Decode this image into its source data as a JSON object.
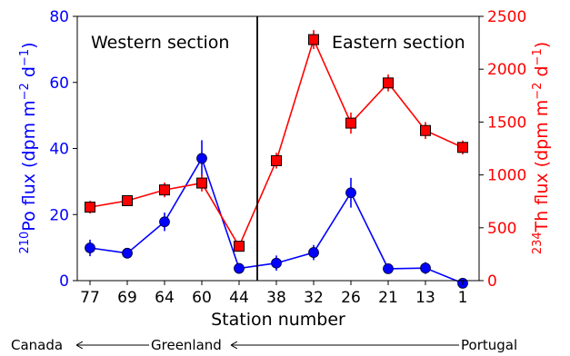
{
  "chart_data": {
    "type": "line",
    "xlabel": "Station number",
    "categories": [
      "77",
      "69",
      "64",
      "60",
      "44",
      "38",
      "32",
      "26",
      "21",
      "13",
      "1"
    ],
    "left_axis": {
      "label_sup": "210",
      "label_main": "Po flux (dpm m",
      "label_sup2": "−2",
      "label_end": " d",
      "label_sup3": "−1",
      "label_close": ")",
      "ylim": [
        0,
        80
      ],
      "ticks": [
        "0",
        "20",
        "40",
        "60",
        "80"
      ],
      "color": "#0000ff"
    },
    "right_axis": {
      "label_sup": "234",
      "label_main": "Th flux (dpm m",
      "label_sup2": "−2",
      "label_end": " d",
      "label_sup3": "−1",
      "label_close": ")",
      "ylim": [
        0,
        2500
      ],
      "ticks": [
        "0",
        "500",
        "1000",
        "1500",
        "2000",
        "2500"
      ],
      "color": "#ff0000"
    },
    "series": [
      {
        "axis": "left",
        "color": "#0000ff",
        "marker": "circle",
        "values": [
          9.9,
          8.3,
          17.8,
          37.0,
          3.7,
          5.3,
          8.5,
          26.6,
          3.6,
          3.8,
          -0.8
        ],
        "errors": [
          2.5,
          1.0,
          2.8,
          5.5,
          1.0,
          2.3,
          2.3,
          4.5,
          1.0,
          1.8,
          0.8
        ]
      },
      {
        "axis": "right",
        "color": "#ff0000",
        "marker": "square",
        "values": [
          695,
          756,
          858,
          923,
          325,
          1135,
          2280,
          1490,
          1870,
          1420,
          1260
        ],
        "errors": [
          60,
          45,
          70,
          80,
          45,
          75,
          90,
          100,
          80,
          80,
          65
        ]
      }
    ],
    "divider_after_category": "44",
    "annotations": {
      "west": "Western section",
      "east": "Eastern section"
    },
    "route": {
      "canada": "Canada",
      "greenland": "Greenland",
      "portugal": "Portugal"
    }
  }
}
